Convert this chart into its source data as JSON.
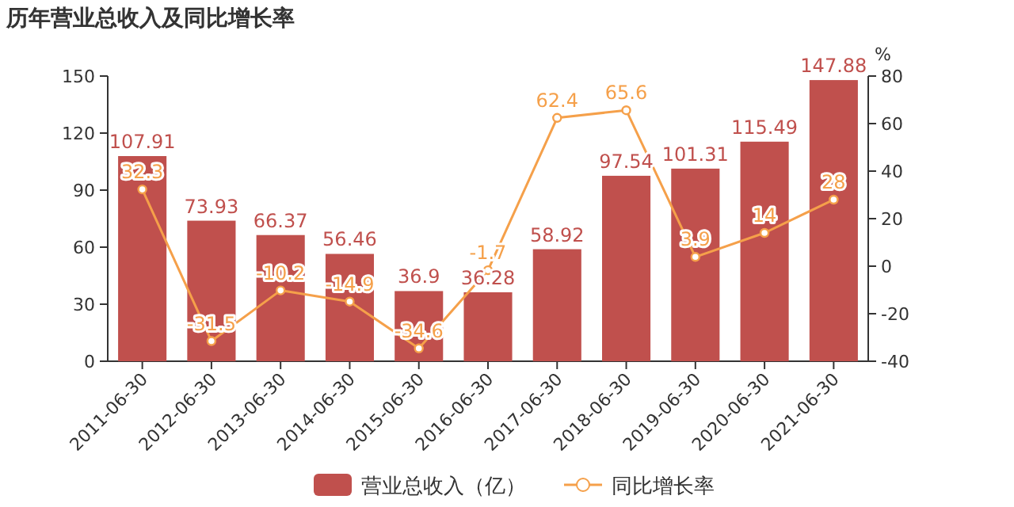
{
  "chart_data": {
    "type": "bar",
    "title": "历年营业总收入及同比增长率",
    "y2label": "%",
    "categories": [
      "2011-06-30",
      "2012-06-30",
      "2013-06-30",
      "2014-06-30",
      "2015-06-30",
      "2016-06-30",
      "2017-06-30",
      "2018-06-30",
      "2019-06-30",
      "2020-06-30",
      "2021-06-30"
    ],
    "series": [
      {
        "name": "营业总收入（亿）",
        "color": "#c0504d",
        "values": [
          107.91,
          73.93,
          66.37,
          56.46,
          36.9,
          36.28,
          58.92,
          97.54,
          101.31,
          115.49,
          147.88
        ]
      },
      {
        "name": "同比增长率",
        "type": "line",
        "axis": "y2",
        "color": "#f5a04a",
        "marker": "circle",
        "values": [
          32.3,
          -31.5,
          -10.2,
          -14.9,
          -34.6,
          -1.7,
          62.4,
          65.6,
          3.9,
          14,
          28
        ]
      }
    ],
    "ylim": [
      0,
      150
    ],
    "yticks": [
      0,
      30,
      60,
      90,
      120,
      150
    ],
    "y2lim": [
      -40,
      80
    ],
    "y2ticks": [
      -40,
      -20,
      0,
      20,
      40,
      60,
      80
    ],
    "data_labels": true,
    "legend": "bottom"
  }
}
